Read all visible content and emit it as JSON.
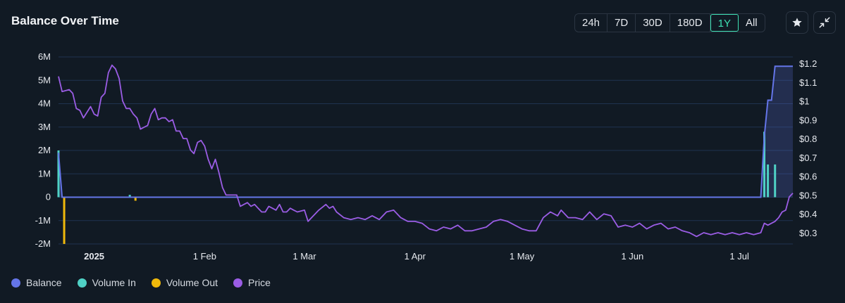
{
  "header": {
    "title": "Balance Over Time",
    "ranges": [
      "24h",
      "7D",
      "30D",
      "180D",
      "1Y",
      "All"
    ],
    "active_range": "1Y",
    "favorite_icon": "star-icon",
    "collapse_icon": "collapse-icon"
  },
  "colors": {
    "balance": "#6475e8",
    "volume_in": "#4fd1c5",
    "volume_out": "#f0b90b",
    "price": "#9b5de5",
    "grid": "#1f3350",
    "background": "#111a24"
  },
  "legend": [
    {
      "label": "Balance",
      "color": "#6475e8"
    },
    {
      "label": "Volume In",
      "color": "#4fd1c5"
    },
    {
      "label": "Volume Out",
      "color": "#f0b90b"
    },
    {
      "label": "Price",
      "color": "#9b5de5"
    }
  ],
  "chart_data": {
    "type": "line",
    "title": "Balance Over Time",
    "x_range": [
      "2024-12-22",
      "2025-07-16"
    ],
    "x_ticks": [
      {
        "date": "2025-01-01",
        "label": "2025"
      },
      {
        "date": "2025-02-01",
        "label": "1 Feb"
      },
      {
        "date": "2025-03-01",
        "label": "1 Mar"
      },
      {
        "date": "2025-04-01",
        "label": "1 Apr"
      },
      {
        "date": "2025-05-01",
        "label": "1 May"
      },
      {
        "date": "2025-06-01",
        "label": "1 Jun"
      },
      {
        "date": "2025-07-01",
        "label": "1 Jul"
      }
    ],
    "y_left": {
      "range": [
        -2000000,
        6000000
      ],
      "ticks": [
        "-2M",
        "-1M",
        "0",
        "1M",
        "2M",
        "3M",
        "4M",
        "5M",
        "6M"
      ],
      "values": [
        -2000000,
        -1000000,
        0,
        1000000,
        2000000,
        3000000,
        4000000,
        5000000,
        6000000
      ]
    },
    "y_right": {
      "range": [
        0.27,
        1.2
      ],
      "ticks": [
        "$0.3",
        "$0.4",
        "$0.5",
        "$0.6",
        "$0.7",
        "$0.8",
        "$0.9",
        "$1",
        "$1.1",
        "$1.2"
      ],
      "values": [
        0.3,
        0.4,
        0.5,
        0.6,
        0.7,
        0.8,
        0.9,
        1.0,
        1.1,
        1.2
      ]
    },
    "grid": true,
    "series": [
      {
        "name": "Balance",
        "kind": "area",
        "axis": "left",
        "points": [
          [
            "2024-12-22",
            1900000
          ],
          [
            "2024-12-23",
            0
          ],
          [
            "2025-07-07",
            0
          ],
          [
            "2025-07-08",
            2600000
          ],
          [
            "2025-07-09",
            4150000
          ],
          [
            "2025-07-10",
            4150000
          ],
          [
            "2025-07-11",
            5600000
          ],
          [
            "2025-07-16",
            5600000
          ]
        ]
      },
      {
        "name": "Volume In",
        "kind": "bar",
        "axis": "left",
        "points": [
          [
            "2024-12-22",
            2000000
          ],
          [
            "2025-01-11",
            100000
          ],
          [
            "2025-07-08",
            2800000
          ],
          [
            "2025-07-09",
            1400000
          ],
          [
            "2025-07-11",
            1400000
          ]
        ]
      },
      {
        "name": "Volume Out",
        "kind": "bar",
        "axis": "left",
        "points": [
          [
            "2024-12-23",
            -2000000
          ],
          [
            "2025-01-12",
            -150000
          ]
        ]
      },
      {
        "name": "Price",
        "kind": "line",
        "axis": "right",
        "points": [
          [
            "2024-12-22",
            1.13
          ],
          [
            "2024-12-23",
            1.05
          ],
          [
            "2024-12-25",
            1.06
          ],
          [
            "2024-12-26",
            1.04
          ],
          [
            "2024-12-27",
            0.96
          ],
          [
            "2024-12-28",
            0.95
          ],
          [
            "2024-12-29",
            0.91
          ],
          [
            "2024-12-31",
            0.97
          ],
          [
            "2025-01-01",
            0.93
          ],
          [
            "2025-01-02",
            0.92
          ],
          [
            "2025-01-03",
            1.02
          ],
          [
            "2025-01-04",
            1.04
          ],
          [
            "2025-01-05",
            1.15
          ],
          [
            "2025-01-06",
            1.19
          ],
          [
            "2025-01-07",
            1.17
          ],
          [
            "2025-01-08",
            1.12
          ],
          [
            "2025-01-09",
            1.0
          ],
          [
            "2025-01-10",
            0.96
          ],
          [
            "2025-01-11",
            0.96
          ],
          [
            "2025-01-12",
            0.93
          ],
          [
            "2025-01-13",
            0.91
          ],
          [
            "2025-01-14",
            0.85
          ],
          [
            "2025-01-15",
            0.86
          ],
          [
            "2025-01-16",
            0.87
          ],
          [
            "2025-01-17",
            0.93
          ],
          [
            "2025-01-18",
            0.96
          ],
          [
            "2025-01-19",
            0.9
          ],
          [
            "2025-01-20",
            0.91
          ],
          [
            "2025-01-21",
            0.91
          ],
          [
            "2025-01-22",
            0.89
          ],
          [
            "2025-01-23",
            0.9
          ],
          [
            "2025-01-24",
            0.84
          ],
          [
            "2025-01-25",
            0.84
          ],
          [
            "2025-01-26",
            0.8
          ],
          [
            "2025-01-27",
            0.8
          ],
          [
            "2025-01-28",
            0.74
          ],
          [
            "2025-01-29",
            0.72
          ],
          [
            "2025-01-30",
            0.78
          ],
          [
            "2025-01-31",
            0.79
          ],
          [
            "2025-02-01",
            0.76
          ],
          [
            "2025-02-02",
            0.69
          ],
          [
            "2025-02-03",
            0.64
          ],
          [
            "2025-02-04",
            0.69
          ],
          [
            "2025-02-05",
            0.62
          ],
          [
            "2025-02-06",
            0.54
          ],
          [
            "2025-02-07",
            0.5
          ],
          [
            "2025-02-08",
            0.5
          ],
          [
            "2025-02-09",
            0.5
          ],
          [
            "2025-02-10",
            0.5
          ],
          [
            "2025-02-11",
            0.44
          ],
          [
            "2025-02-12",
            0.45
          ],
          [
            "2025-02-13",
            0.46
          ],
          [
            "2025-02-14",
            0.44
          ],
          [
            "2025-02-15",
            0.45
          ],
          [
            "2025-02-16",
            0.43
          ],
          [
            "2025-02-17",
            0.41
          ],
          [
            "2025-02-18",
            0.41
          ],
          [
            "2025-02-19",
            0.44
          ],
          [
            "2025-02-20",
            0.43
          ],
          [
            "2025-02-21",
            0.42
          ],
          [
            "2025-02-22",
            0.45
          ],
          [
            "2025-02-23",
            0.41
          ],
          [
            "2025-02-24",
            0.41
          ],
          [
            "2025-02-25",
            0.43
          ],
          [
            "2025-02-26",
            0.42
          ],
          [
            "2025-02-27",
            0.41
          ],
          [
            "2025-03-01",
            0.42
          ],
          [
            "2025-03-02",
            0.36
          ],
          [
            "2025-03-03",
            0.38
          ],
          [
            "2025-03-05",
            0.42
          ],
          [
            "2025-03-07",
            0.45
          ],
          [
            "2025-03-08",
            0.43
          ],
          [
            "2025-03-09",
            0.44
          ],
          [
            "2025-03-10",
            0.41
          ],
          [
            "2025-03-12",
            0.38
          ],
          [
            "2025-03-14",
            0.37
          ],
          [
            "2025-03-16",
            0.38
          ],
          [
            "2025-03-18",
            0.37
          ],
          [
            "2025-03-20",
            0.39
          ],
          [
            "2025-03-22",
            0.37
          ],
          [
            "2025-03-24",
            0.41
          ],
          [
            "2025-03-26",
            0.42
          ],
          [
            "2025-03-28",
            0.38
          ],
          [
            "2025-03-30",
            0.36
          ],
          [
            "2025-04-01",
            0.36
          ],
          [
            "2025-04-03",
            0.35
          ],
          [
            "2025-04-05",
            0.32
          ],
          [
            "2025-04-07",
            0.31
          ],
          [
            "2025-04-09",
            0.33
          ],
          [
            "2025-04-11",
            0.32
          ],
          [
            "2025-04-13",
            0.34
          ],
          [
            "2025-04-15",
            0.31
          ],
          [
            "2025-04-17",
            0.31
          ],
          [
            "2025-04-19",
            0.32
          ],
          [
            "2025-04-21",
            0.33
          ],
          [
            "2025-04-23",
            0.36
          ],
          [
            "2025-04-25",
            0.37
          ],
          [
            "2025-04-27",
            0.36
          ],
          [
            "2025-04-29",
            0.34
          ],
          [
            "2025-05-01",
            0.32
          ],
          [
            "2025-05-03",
            0.31
          ],
          [
            "2025-05-05",
            0.31
          ],
          [
            "2025-05-07",
            0.38
          ],
          [
            "2025-05-09",
            0.41
          ],
          [
            "2025-05-11",
            0.39
          ],
          [
            "2025-05-12",
            0.42
          ],
          [
            "2025-05-14",
            0.38
          ],
          [
            "2025-05-16",
            0.38
          ],
          [
            "2025-05-18",
            0.37
          ],
          [
            "2025-05-20",
            0.41
          ],
          [
            "2025-05-22",
            0.37
          ],
          [
            "2025-05-24",
            0.4
          ],
          [
            "2025-05-26",
            0.39
          ],
          [
            "2025-05-28",
            0.33
          ],
          [
            "2025-05-30",
            0.34
          ],
          [
            "2025-06-01",
            0.33
          ],
          [
            "2025-06-03",
            0.35
          ],
          [
            "2025-06-05",
            0.32
          ],
          [
            "2025-06-07",
            0.34
          ],
          [
            "2025-06-09",
            0.35
          ],
          [
            "2025-06-11",
            0.32
          ],
          [
            "2025-06-13",
            0.33
          ],
          [
            "2025-06-15",
            0.31
          ],
          [
            "2025-06-17",
            0.3
          ],
          [
            "2025-06-19",
            0.28
          ],
          [
            "2025-06-21",
            0.3
          ],
          [
            "2025-06-23",
            0.29
          ],
          [
            "2025-06-25",
            0.3
          ],
          [
            "2025-06-27",
            0.29
          ],
          [
            "2025-06-29",
            0.3
          ],
          [
            "2025-07-01",
            0.29
          ],
          [
            "2025-07-03",
            0.3
          ],
          [
            "2025-07-05",
            0.29
          ],
          [
            "2025-07-07",
            0.3
          ],
          [
            "2025-07-08",
            0.35
          ],
          [
            "2025-07-09",
            0.34
          ],
          [
            "2025-07-10",
            0.35
          ],
          [
            "2025-07-11",
            0.36
          ],
          [
            "2025-07-12",
            0.38
          ],
          [
            "2025-07-13",
            0.41
          ],
          [
            "2025-07-14",
            0.42
          ],
          [
            "2025-07-15",
            0.49
          ],
          [
            "2025-07-16",
            0.51
          ]
        ]
      }
    ]
  }
}
